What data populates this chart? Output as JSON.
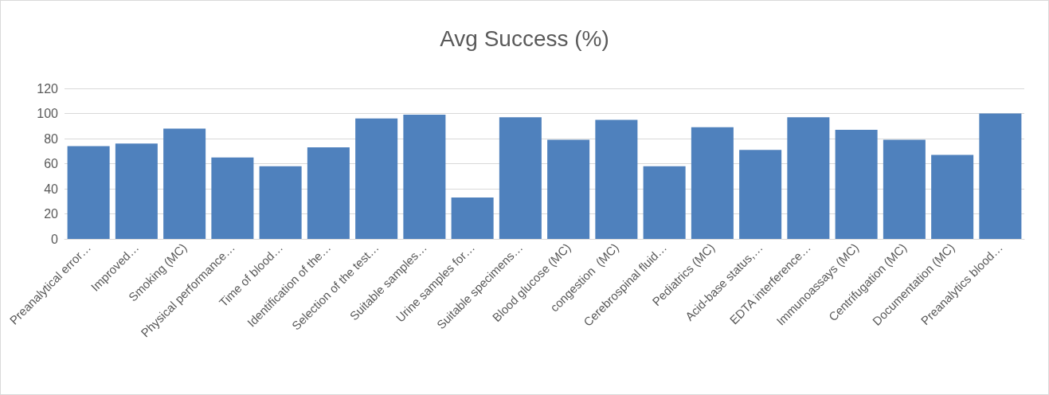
{
  "chart_data": {
    "type": "bar",
    "title": "Avg Success (%)",
    "categories": [
      "Preanalytical error…",
      "Improved…",
      "Smoking (MC)",
      "Physical performance…",
      "Time of blood…",
      "Identification of the…",
      "Selection of the test…",
      "Suitable samples…",
      "Urine samples for…",
      "Suitable specimens…",
      "Blood glucose (MC)",
      "congestion  (MC)",
      "Cerebrospinal fluid…",
      "Pediatrics (MC)",
      "Acid-base status,…",
      "EDTA interference…",
      "Immunoassays (MC)",
      "Centrifugation (MC)",
      "Documentation (MC)",
      "Preanalytics blood…"
    ],
    "values": [
      74,
      76,
      88,
      65,
      58,
      73,
      96,
      99,
      33,
      97,
      79,
      95,
      58,
      89,
      71,
      97,
      87,
      79,
      67,
      100
    ],
    "color": "#4f81bd",
    "ylim": [
      0,
      120
    ],
    "yticks": [
      0,
      20,
      40,
      60,
      80,
      100,
      120
    ],
    "grid": "y"
  }
}
